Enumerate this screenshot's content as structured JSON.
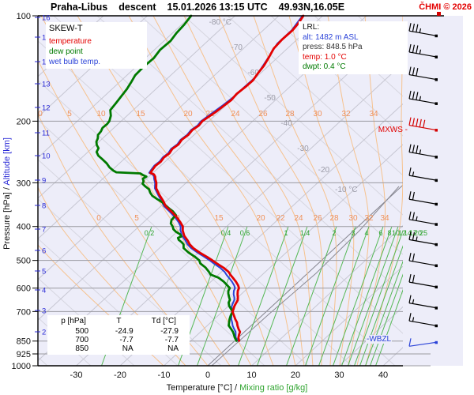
{
  "header": {
    "station": "Praha-Libus",
    "sounding_type": "descent",
    "datetime": "15.01.2026 13:15 UTC",
    "coords": "49.93N,16.05E",
    "copyright": "ČHMI © 2026"
  },
  "legend": {
    "title": "SKEW-T",
    "items": [
      {
        "label": "temperature",
        "color": "#e30000"
      },
      {
        "label": "dew point",
        "color": "#007a00"
      },
      {
        "label": "wet bulb temp.",
        "color": "#2b43d8"
      }
    ]
  },
  "info_box": {
    "title": "LRL:",
    "rows": [
      {
        "text": "alt: 1482 m ASL",
        "color": "#2b43d8"
      },
      {
        "text": "press: 848.5 hPa",
        "color": "#333333"
      },
      {
        "text": "temp: 1.0 °C",
        "color": "#e30000"
      },
      {
        "text": "dwpt: 0.4 °C",
        "color": "#007a00"
      }
    ]
  },
  "data_table": {
    "headers": [
      "p [hPa]",
      "T",
      "Td [°C]"
    ],
    "rows": [
      [
        "500",
        "-24.9",
        "-27.9"
      ],
      [
        "700",
        "-7.7",
        "-7.7"
      ],
      [
        "850",
        "NA",
        "NA"
      ]
    ]
  },
  "axes": {
    "x_label_black": "Temperature [°C]",
    "x_label_sep": "  /  ",
    "x_label_green": "Mixing ratio [g/kg]",
    "y_label_black": "Pressure [hPa]",
    "y_label_sep": "  /  ",
    "y_label_blue": "Altitude [km]",
    "pressure_ticks": [
      100,
      200,
      300,
      400,
      500,
      600,
      700,
      850,
      925,
      1000
    ],
    "temp_ticks": [
      -30,
      -20,
      -10,
      0,
      10,
      20,
      30,
      40
    ],
    "altitude_ticks": [
      16,
      15,
      14,
      13,
      12,
      11,
      10,
      9,
      8,
      7,
      6,
      5,
      4,
      3,
      2
    ]
  },
  "annotations": {
    "mxws": "MXWS -",
    "wbzl": "-WBZL"
  },
  "isotherm_labels": [
    "-80 °C",
    "-70",
    "-60",
    "-50",
    "-40",
    "-30",
    "-20",
    "-10 °C"
  ],
  "moist_adiabat_labels": [
    0,
    5,
    10,
    15,
    20,
    22,
    24,
    26,
    28,
    30,
    32,
    34
  ],
  "mixing_ratio_labels": [
    0.2,
    0.4,
    0.6,
    1,
    1.4,
    2,
    3,
    4,
    6,
    8,
    10,
    12,
    14,
    17,
    20,
    25
  ],
  "chart_data": {
    "type": "line",
    "title": "SKEW-T",
    "x_axis": {
      "label": "Temperature [°C]",
      "range": [
        -38,
        47
      ]
    },
    "y_axis": {
      "label": "Pressure [hPa]",
      "range": [
        1000,
        100
      ],
      "scale": "log"
    },
    "series": [
      {
        "name": "temperature",
        "color": "#e30000",
        "points": [
          [
            848.5,
            1.0
          ],
          [
            832,
            0.1
          ],
          [
            816,
            -0.5
          ],
          [
            800,
            -1.0
          ],
          [
            784,
            -2.1
          ],
          [
            768,
            -3.1
          ],
          [
            752,
            -4.0
          ],
          [
            736,
            -5.2
          ],
          [
            720,
            -6.3
          ],
          [
            710,
            -7.0
          ],
          [
            700,
            -7.7
          ],
          [
            691,
            -8.0
          ],
          [
            676,
            -8.6
          ],
          [
            662,
            -9.0
          ],
          [
            650,
            -9.3
          ],
          [
            639,
            -9.9
          ],
          [
            625,
            -10.8
          ],
          [
            611,
            -11.6
          ],
          [
            600,
            -12.0
          ],
          [
            589,
            -12.9
          ],
          [
            575,
            -14.3
          ],
          [
            561,
            -15.9
          ],
          [
            550,
            -17.2
          ],
          [
            539,
            -18.4
          ],
          [
            525,
            -20.5
          ],
          [
            511,
            -23.0
          ],
          [
            500,
            -24.9
          ],
          [
            489,
            -26.9
          ],
          [
            475,
            -29.7
          ],
          [
            461,
            -32.3
          ],
          [
            450,
            -34.0
          ],
          [
            439,
            -35.4
          ],
          [
            425,
            -37.4
          ],
          [
            411,
            -39.0
          ],
          [
            400,
            -40.0
          ],
          [
            389,
            -41.6
          ],
          [
            375,
            -43.9
          ],
          [
            361,
            -46.6
          ],
          [
            350,
            -48.9
          ],
          [
            339,
            -50.6
          ],
          [
            325,
            -53.1
          ],
          [
            311,
            -55.5
          ],
          [
            300,
            -56.8
          ],
          [
            293,
            -57.9
          ],
          [
            288,
            -58.6
          ],
          [
            284,
            -59.4
          ],
          [
            281,
            -60.6
          ],
          [
            275,
            -60.9
          ],
          [
            268,
            -61.2
          ],
          [
            261,
            -61.0
          ],
          [
            254,
            -61.3
          ],
          [
            247,
            -61.1
          ],
          [
            240,
            -61.5
          ],
          [
            233,
            -61.2
          ],
          [
            226,
            -61.6
          ],
          [
            219,
            -61.3
          ],
          [
            212,
            -61.6
          ],
          [
            206,
            -61.2
          ],
          [
            200,
            -61.5
          ],
          [
            194,
            -61.1
          ],
          [
            188,
            -60.7
          ],
          [
            181,
            -60.4
          ],
          [
            174,
            -60.1
          ],
          [
            167,
            -60.4
          ],
          [
            160,
            -60.1
          ],
          [
            153,
            -60.0
          ],
          [
            146,
            -60.6
          ],
          [
            139,
            -61.1
          ],
          [
            131,
            -62.1
          ],
          [
            124,
            -63.1
          ],
          [
            117,
            -63.4
          ],
          [
            110,
            -63.3
          ],
          [
            105,
            -63.7
          ],
          [
            100,
            -64.4
          ]
        ]
      },
      {
        "name": "dew_point",
        "color": "#007a00",
        "points": [
          [
            848.5,
            0.4
          ],
          [
            832,
            -0.7
          ],
          [
            815,
            -1.7
          ],
          [
            800,
            -2.6
          ],
          [
            783,
            -3.9
          ],
          [
            768,
            -5.1
          ],
          [
            752,
            -5.8
          ],
          [
            736,
            -6.5
          ],
          [
            720,
            -7.1
          ],
          [
            710,
            -7.4
          ],
          [
            700,
            -7.7
          ],
          [
            688,
            -8.7
          ],
          [
            674,
            -9.9
          ],
          [
            660,
            -10.8
          ],
          [
            648,
            -11.2
          ],
          [
            636,
            -12.1
          ],
          [
            622,
            -13.1
          ],
          [
            610,
            -13.8
          ],
          [
            600,
            -14.1
          ],
          [
            588,
            -15.5
          ],
          [
            574,
            -17.2
          ],
          [
            560,
            -19.3
          ],
          [
            549,
            -21.8
          ],
          [
            538,
            -23.0
          ],
          [
            524,
            -24.7
          ],
          [
            510,
            -26.9
          ],
          [
            500,
            -27.9
          ],
          [
            488,
            -29.8
          ],
          [
            474,
            -32.4
          ],
          [
            461,
            -34.5
          ],
          [
            450,
            -35.4
          ],
          [
            444,
            -36.3
          ],
          [
            437,
            -37.6
          ],
          [
            431,
            -38.3
          ],
          [
            427,
            -37.9
          ],
          [
            421,
            -38.7
          ],
          [
            414,
            -40.3
          ],
          [
            407,
            -41.5
          ],
          [
            400,
            -42.3
          ],
          [
            392,
            -43.5
          ],
          [
            383,
            -44.2
          ],
          [
            371,
            -44.4
          ],
          [
            362,
            -46.0
          ],
          [
            356,
            -47.4
          ],
          [
            349,
            -48.9
          ],
          [
            342,
            -50.4
          ],
          [
            334,
            -52.6
          ],
          [
            327,
            -54.5
          ],
          [
            320,
            -55.8
          ],
          [
            313,
            -56.9
          ],
          [
            307,
            -58.5
          ],
          [
            302,
            -59.7
          ],
          [
            297,
            -60.1
          ],
          [
            292,
            -60.9
          ],
          [
            288,
            -60.6
          ],
          [
            285,
            -61.8
          ],
          [
            282,
            -62.8
          ],
          [
            280,
            -68.5
          ],
          [
            277,
            -69.6
          ],
          [
            271,
            -71.3
          ],
          [
            264,
            -72.9
          ],
          [
            257,
            -74.9
          ],
          [
            251,
            -76.7
          ],
          [
            245,
            -78.0
          ],
          [
            239,
            -78.5
          ],
          [
            234,
            -79.7
          ],
          [
            229,
            -80.6
          ],
          [
            224,
            -81.1
          ],
          [
            219,
            -81.9
          ],
          [
            214,
            -82.1
          ],
          [
            209,
            -82.6
          ],
          [
            204,
            -82.5
          ],
          [
            200,
            -82.7
          ],
          [
            193,
            -83.7
          ],
          [
            186,
            -85.2
          ],
          [
            178,
            -85.6
          ],
          [
            170,
            -86.1
          ],
          [
            162,
            -86.6
          ],
          [
            155,
            -87.3
          ],
          [
            148,
            -88.1
          ],
          [
            140,
            -88.3
          ],
          [
            132,
            -88.1
          ],
          [
            125,
            -88.7
          ],
          [
            118,
            -88.5
          ],
          [
            112,
            -89.1
          ],
          [
            106,
            -89.4
          ],
          [
            100,
            -90.0
          ]
        ]
      },
      {
        "name": "wet_bulb",
        "color": "#2b43d8",
        "points": [
          [
            848.5,
            0.7
          ],
          [
            830,
            -0.6
          ],
          [
            815,
            -1.3
          ],
          [
            800,
            -2.0
          ],
          [
            783,
            -3.2
          ],
          [
            768,
            -4.2
          ],
          [
            752,
            -5.1
          ],
          [
            736,
            -6.1
          ],
          [
            720,
            -6.9
          ],
          [
            710,
            -7.4
          ],
          [
            700,
            -7.8
          ],
          [
            690,
            -8.4
          ],
          [
            676,
            -9.2
          ],
          [
            662,
            -9.7
          ],
          [
            650,
            -10.1
          ],
          [
            639,
            -10.7
          ],
          [
            625,
            -11.7
          ],
          [
            611,
            -12.5
          ],
          [
            600,
            -12.9
          ],
          [
            589,
            -13.8
          ],
          [
            575,
            -15.2
          ],
          [
            561,
            -16.8
          ],
          [
            550,
            -18.1
          ],
          [
            539,
            -19.3
          ],
          [
            525,
            -21.3
          ],
          [
            511,
            -23.7
          ],
          [
            500,
            -25.5
          ],
          [
            489,
            -27.5
          ],
          [
            475,
            -30.2
          ],
          [
            461,
            -32.8
          ],
          [
            450,
            -34.5
          ],
          [
            439,
            -35.9
          ],
          [
            425,
            -37.9
          ],
          [
            411,
            -39.5
          ],
          [
            400,
            -40.5
          ],
          [
            389,
            -42.0
          ],
          [
            375,
            -44.3
          ],
          [
            361,
            -47.0
          ],
          [
            350,
            -49.3
          ],
          [
            339,
            -51.0
          ],
          [
            325,
            -53.4
          ],
          [
            311,
            -55.8
          ],
          [
            300,
            -57.1
          ],
          [
            293,
            -58.2
          ],
          [
            288,
            -58.9
          ],
          [
            284,
            -59.7
          ],
          [
            281,
            -60.9
          ],
          [
            275,
            -61.2
          ],
          [
            268,
            -61.5
          ],
          [
            261,
            -61.3
          ],
          [
            254,
            -61.6
          ],
          [
            247,
            -61.4
          ],
          [
            240,
            -61.8
          ],
          [
            233,
            -61.5
          ],
          [
            226,
            -61.9
          ],
          [
            219,
            -61.6
          ],
          [
            212,
            -61.9
          ],
          [
            206,
            -61.5
          ],
          [
            200,
            -61.8
          ],
          [
            190,
            -61.3
          ],
          [
            180,
            -60.7
          ],
          [
            170,
            -60.3
          ],
          [
            160,
            -60.3
          ],
          [
            150,
            -60.2
          ],
          [
            140,
            -61.2
          ],
          [
            130,
            -62.3
          ],
          [
            120,
            -63.5
          ],
          [
            110,
            -63.5
          ],
          [
            100,
            -64.6
          ]
        ]
      }
    ],
    "wind_barbs": [
      {
        "pressure": 114,
        "knots": 35,
        "color": "black"
      },
      {
        "pressure": 131,
        "knots": 35,
        "color": "black"
      },
      {
        "pressure": 152,
        "knots": 30,
        "color": "black"
      },
      {
        "pressure": 178,
        "knots": 35,
        "color": "black"
      },
      {
        "pressure": 212,
        "knots": 50,
        "color": "red",
        "tag": "MXWS"
      },
      {
        "pressure": 253,
        "knots": 35,
        "color": "black"
      },
      {
        "pressure": 295,
        "knots": 15,
        "color": "black"
      },
      {
        "pressure": 345,
        "knots": 20,
        "color": "black"
      },
      {
        "pressure": 394,
        "knots": 25,
        "color": "black"
      },
      {
        "pressure": 450,
        "knots": 25,
        "color": "black"
      },
      {
        "pressure": 517,
        "knots": 20,
        "color": "black"
      },
      {
        "pressure": 595,
        "knots": 20,
        "color": "black"
      },
      {
        "pressure": 683,
        "knots": 15,
        "color": "black"
      },
      {
        "pressure": 768,
        "knots": 15,
        "color": "black"
      },
      {
        "pressure": 857,
        "knots": 10,
        "color": "blue",
        "tag": "WBZL"
      }
    ]
  }
}
